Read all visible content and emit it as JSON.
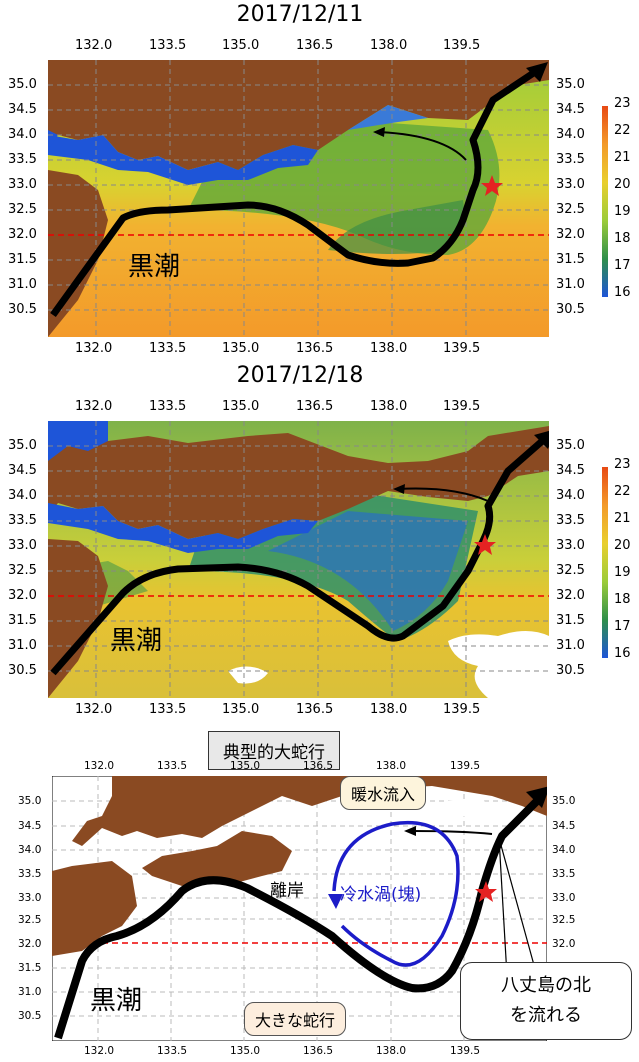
{
  "panels": [
    {
      "date": "2017/12/11",
      "xticks": [
        "132.0",
        "133.5",
        "135.0",
        "136.5",
        "138.0",
        "139.5"
      ],
      "yticks": [
        "35.0",
        "34.5",
        "34.0",
        "33.5",
        "33.0",
        "32.5",
        "32.0",
        "31.5",
        "31.0",
        "30.5"
      ],
      "label": "黒潮"
    },
    {
      "date": "2017/12/18",
      "xticks": [
        "132.0",
        "133.5",
        "135.0",
        "136.5",
        "138.0",
        "139.5"
      ],
      "yticks": [
        "35.0",
        "34.5",
        "34.0",
        "33.5",
        "33.0",
        "32.5",
        "32.0",
        "31.5",
        "31.0",
        "30.5"
      ],
      "label": "黒潮"
    }
  ],
  "colorbar": {
    "ticks": [
      "23",
      "22",
      "21",
      "20",
      "19",
      "18",
      "17",
      "16"
    ],
    "min": 16,
    "max": 23
  },
  "schematic": {
    "title": "典型的大蛇行",
    "xticks": [
      "132.0",
      "133.5",
      "135.0",
      "136.5",
      "138.0",
      "139.5"
    ],
    "yticks": [
      "35.0",
      "34.5",
      "34.0",
      "33.5",
      "33.0",
      "32.5",
      "32.0",
      "31.5",
      "31.0",
      "30.5"
    ],
    "kuroshio": "黒潮",
    "warm_inflow": "暖水流入",
    "cold_eddy": "冷水渦(塊)",
    "offshore": "離岸",
    "big_meander": "大きな蛇行",
    "hachijo_line1": "八丈島の北",
    "hachijo_line2": "を流れる"
  }
}
